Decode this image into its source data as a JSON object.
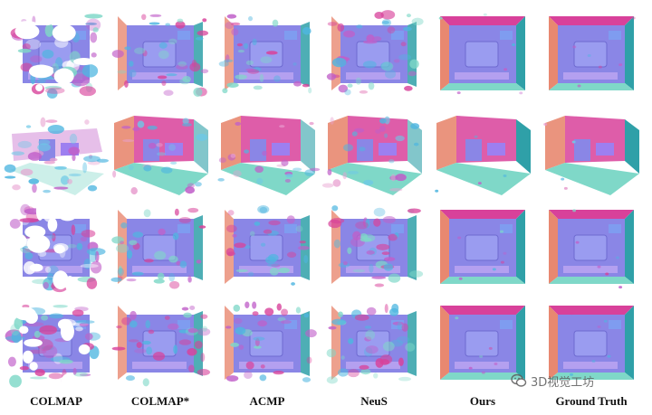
{
  "figure": {
    "columns": [
      "COLMAP",
      "COLMAP*",
      "ACMP",
      "NeuS",
      "Ours",
      "Ground Truth"
    ],
    "rows": 4,
    "palette": {
      "floor": "#7fd8c8",
      "floor_alt": "#6ec8e6",
      "wall_left": "#e88870",
      "wall_right": "#2fa0a8",
      "wall_top": "#d8419a",
      "surface": "#8a86e6",
      "noise_a": "#c05fc9",
      "noise_b": "#4fb6e0"
    }
  },
  "watermark": {
    "text": "3D视觉工坊",
    "icon": "wechat-icon"
  }
}
